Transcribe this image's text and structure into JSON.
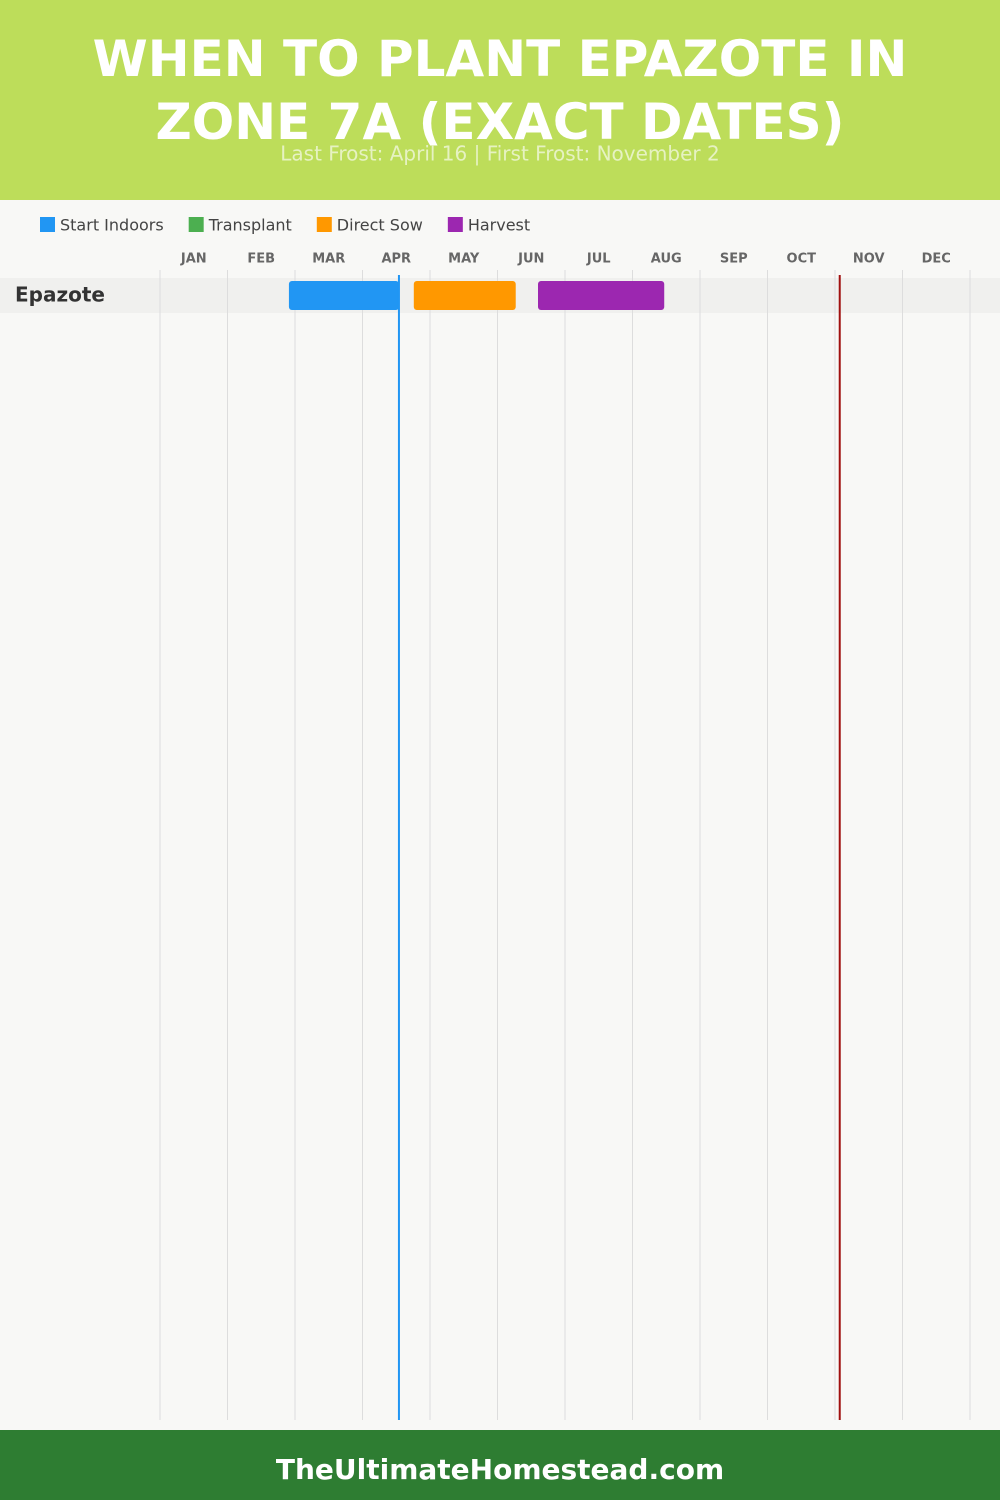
{
  "chart_data": {
    "type": "gantt",
    "title": "WHEN TO PLANT EPAZOTE IN ZONE 7A (EXACT DATES)",
    "subtitle": "Last Frost: April 16 | First Frost: November 2",
    "footer": "TheUltimateHomestead.com",
    "categories": [
      "JAN",
      "FEB",
      "MAR",
      "APR",
      "MAY",
      "JUN",
      "JUL",
      "AUG",
      "SEP",
      "OCT",
      "NOV",
      "DEC"
    ],
    "xlim": [
      0,
      12
    ],
    "xticks": [
      0,
      1,
      2,
      3,
      4,
      5,
      6,
      7,
      8,
      9,
      10,
      11,
      12
    ],
    "grid": true,
    "rows": [
      "Epazote"
    ],
    "series": [
      {
        "name": "Start Indoors",
        "color": "#2196f3",
        "start": [
          1.91
        ],
        "end": [
          3.54
        ]
      },
      {
        "name": "Transplant",
        "color": "#4caf50",
        "start": [
          null
        ],
        "end": [
          null
        ]
      },
      {
        "name": "Direct Sow",
        "color": "#ff9800",
        "start": [
          3.76
        ],
        "end": [
          5.27
        ]
      },
      {
        "name": "Harvest",
        "color": "#9c27b0",
        "start": [
          5.6
        ],
        "end": [
          7.47
        ]
      }
    ],
    "markers": [
      {
        "value": 3.54,
        "color": "#2196f3"
      },
      {
        "value": 10.07,
        "color": "#a01010"
      }
    ]
  }
}
